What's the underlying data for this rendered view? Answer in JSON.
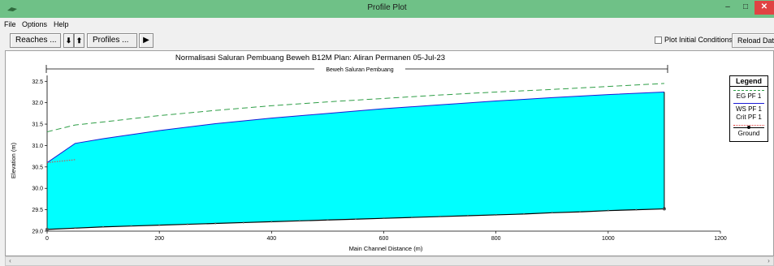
{
  "window": {
    "title": "Profile Plot",
    "minimize_glyph": "–",
    "maximize_glyph": "□",
    "close_glyph": "✕"
  },
  "menu": {
    "items": [
      "File",
      "Options",
      "Help"
    ]
  },
  "toolbar": {
    "reaches_label": "Reaches ...",
    "down_glyph": "⬇",
    "up_glyph": "⬆",
    "profiles_label": "Profiles ...",
    "play_glyph": "▶",
    "plot_initial_conditions_label": "Plot Initial Conditions",
    "plot_initial_conditions_checked": false,
    "reload_label": "Reload Data"
  },
  "plot": {
    "title": "Normalisasi Saluran Pembuang Beweh B12M     Plan: Aliran Permanen     05-Jul-23",
    "reach_label": "Beweh Saluran Pembuang",
    "xlabel": "Main Channel Distance (m)",
    "ylabel": "Elevation (m)"
  },
  "legend": {
    "title": "Legend",
    "items": [
      {
        "label": "EG  PF 1",
        "color": "#2e9e46",
        "style": "dashed"
      },
      {
        "label": "WS  PF 1",
        "color": "#1b1bd6",
        "style": "solid"
      },
      {
        "label": "Crit  PF 1",
        "color": "#e43b3b",
        "style": "dotted"
      },
      {
        "label": "Ground",
        "color": "#000000",
        "style": "solid-dot"
      }
    ]
  },
  "chart_data": {
    "type": "line",
    "x_range": [
      0,
      1200
    ],
    "y_range": [
      29.0,
      32.6
    ],
    "x_ticks": [
      0,
      200,
      400,
      600,
      800,
      1000,
      1200
    ],
    "y_ticks": [
      29.0,
      29.5,
      30.0,
      30.5,
      31.0,
      31.5,
      32.0,
      32.5
    ],
    "water_fill_color": "#00ffff",
    "series": [
      {
        "name": "EG  PF 1",
        "color": "#2e9e46",
        "x": [
          0,
          50,
          100,
          200,
          300,
          400,
          500,
          600,
          700,
          800,
          900,
          1000,
          1100
        ],
        "y": [
          31.32,
          31.48,
          31.55,
          31.7,
          31.82,
          31.93,
          32.02,
          32.1,
          32.18,
          32.25,
          32.31,
          32.38,
          32.45
        ]
      },
      {
        "name": "WS  PF 1",
        "color": "#1b1bd6",
        "x": [
          0,
          50,
          100,
          200,
          300,
          400,
          500,
          600,
          700,
          800,
          900,
          1000,
          1100
        ],
        "y": [
          30.6,
          31.05,
          31.16,
          31.35,
          31.51,
          31.64,
          31.75,
          31.86,
          31.95,
          32.04,
          32.12,
          32.19,
          32.25
        ]
      },
      {
        "name": "Crit  PF 1",
        "color": "#e43b3b",
        "x": [
          0,
          50
        ],
        "y": [
          30.6,
          30.67
        ]
      },
      {
        "name": "Ground",
        "color": "#000000",
        "x": [
          0,
          50,
          100,
          150,
          200,
          250,
          300,
          350,
          400,
          450,
          500,
          550,
          600,
          650,
          700,
          750,
          800,
          850,
          900,
          950,
          1000,
          1050,
          1100
        ],
        "y": [
          29.04,
          29.07,
          29.1,
          29.12,
          29.14,
          29.16,
          29.18,
          29.2,
          29.22,
          29.24,
          29.26,
          29.28,
          29.3,
          29.32,
          29.34,
          29.36,
          29.38,
          29.4,
          29.43,
          29.45,
          29.48,
          29.5,
          29.52
        ]
      }
    ]
  }
}
